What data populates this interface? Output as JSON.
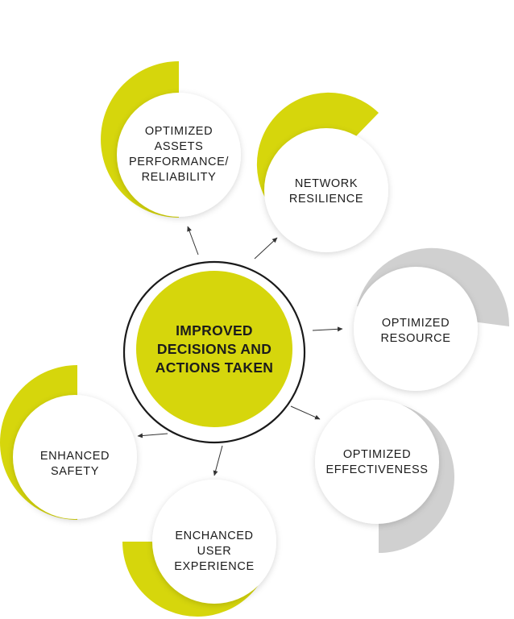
{
  "colors": {
    "accent": "#d6d60c",
    "gray": "#d0d0d0",
    "ring": "#1a1a1a",
    "arrow": "#333333",
    "text": "#1c1c1c"
  },
  "center": {
    "label": "IMPROVED\nDECISIONS AND\nACTIONS TAKEN"
  },
  "outcomes": [
    {
      "label": "OPTIMIZED\nASSETS\nPERFORMANCE/\nRELIABILITY",
      "crescent_color": "accent"
    },
    {
      "label": "NETWORK\nRESILIENCE",
      "crescent_color": "accent"
    },
    {
      "label": "OPTIMIZED\nRESOURCE",
      "crescent_color": "gray"
    },
    {
      "label": "OPTIMIZED\nEFFECTIVENESS",
      "crescent_color": "gray"
    },
    {
      "label": "ENCHANCED\nUSER\nEXPERIENCE",
      "crescent_color": "accent"
    },
    {
      "label": "ENHANCED\nSAFETY",
      "crescent_color": "accent"
    }
  ]
}
